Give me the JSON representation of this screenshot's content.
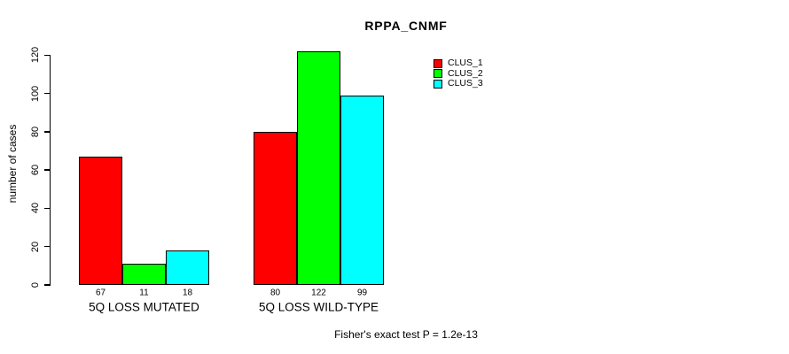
{
  "title": "RPPA_CNMF",
  "footer": "Fisher's exact test P = 1.2e-13",
  "y_axis": {
    "label": "number of cases",
    "ticks": [
      0,
      20,
      40,
      60,
      80,
      100,
      120
    ]
  },
  "legend": {
    "position": "top-right",
    "entries": [
      {
        "label": "CLUS_1",
        "color": "#ff0000"
      },
      {
        "label": "CLUS_2",
        "color": "#00ff00"
      },
      {
        "label": "CLUS_3",
        "color": "#00ffff"
      }
    ]
  },
  "chart_data": {
    "type": "bar",
    "title": "RPPA_CNMF",
    "categories": [
      "5Q LOSS MUTATED",
      "5Q LOSS WILD-TYPE"
    ],
    "series": [
      {
        "name": "CLUS_1",
        "color": "#ff0000",
        "values": [
          67,
          80
        ]
      },
      {
        "name": "CLUS_2",
        "color": "#00ff00",
        "values": [
          11,
          122
        ]
      },
      {
        "name": "CLUS_3",
        "color": "#00ffff",
        "values": [
          18,
          99
        ]
      }
    ],
    "bar_value_labels": [
      [
        "67",
        "11",
        "18"
      ],
      [
        "80",
        "122",
        "99"
      ]
    ],
    "xlabel": "",
    "ylabel": "number of cases",
    "ylim": [
      0,
      122
    ],
    "yticks": [
      0,
      20,
      40,
      60,
      80,
      100,
      120
    ],
    "grid": false,
    "legend_position": "top-right",
    "annotation": "Fisher's exact test P = 1.2e-13"
  }
}
